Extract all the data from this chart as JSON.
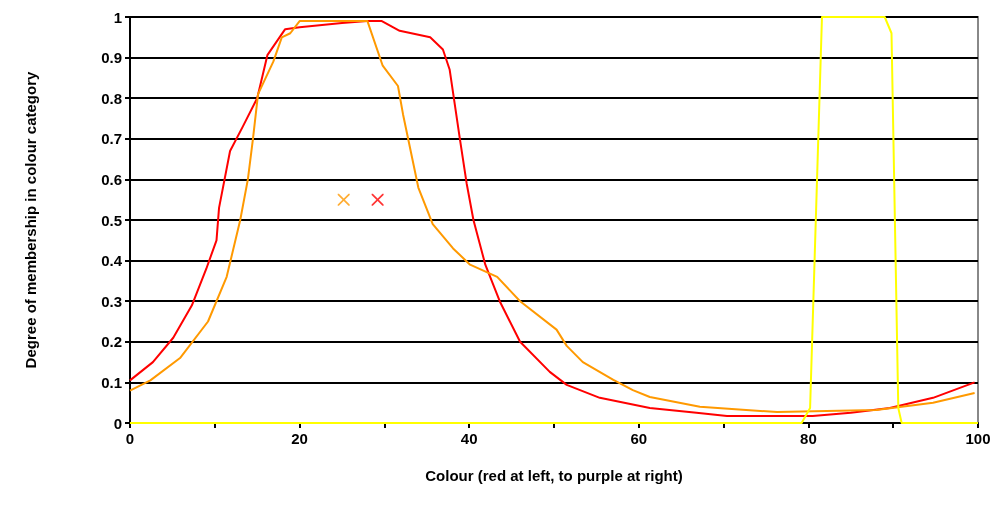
{
  "chart_data": {
    "type": "line",
    "xlabel": "Colour (red at left, to purple at right)",
    "ylabel": "Degree of membership in colour category",
    "xlim": [
      0,
      100
    ],
    "xticks": [
      0,
      {
        "value": 10,
        "label": null
      },
      20,
      {
        "value": 30,
        "label": null
      },
      40,
      {
        "value": 50,
        "label": null
      },
      60,
      {
        "value": 70,
        "label": null
      },
      80,
      {
        "value": 90,
        "label": null
      },
      100
    ],
    "ylim": [
      0,
      1
    ],
    "yticks": [
      0,
      0.1,
      0.2,
      0.3,
      0.4,
      0.5,
      0.6,
      0.7,
      0.8,
      0.9,
      1
    ],
    "grid": "y",
    "marker": "none",
    "line_style": "solid",
    "series": [
      {
        "color": "#ff0000",
        "x": [
          0,
          2.7,
          5.1,
          7.3,
          9,
          10.2,
          10.5,
          11.8,
          13.3,
          15,
          16.2,
          18.3,
          20,
          25,
          28,
          29.7,
          31.8,
          35.4,
          36.9,
          37.7,
          38.9,
          39.7,
          40.5,
          41.9,
          43.6,
          46,
          49.5,
          51.5,
          55.4,
          61.3,
          66.8,
          70.4,
          80.5,
          85,
          89.6,
          94.7,
          99.6
        ],
        "values": [
          0.105,
          0.15,
          0.21,
          0.29,
          0.38,
          0.45,
          0.53,
          0.67,
          0.73,
          0.8,
          0.906,
          0.97,
          0.975,
          0.985,
          0.99,
          0.99,
          0.966,
          0.95,
          0.92,
          0.87,
          0.7,
          0.59,
          0.5,
          0.39,
          0.3,
          0.2,
          0.126,
          0.094,
          0.062,
          0.037,
          0.025,
          0.017,
          0.017,
          0.025,
          0.037,
          0.062,
          0.1
        ]
      },
      {
        "color": "#ff9900",
        "x": [
          0,
          2.4,
          5.9,
          9.2,
          11.4,
          13,
          13.9,
          14.5,
          15.1,
          16.9,
          17.9,
          18.9,
          20,
          28,
          29.8,
          31.6,
          32.2,
          34,
          35.7,
          38.1,
          40.1,
          43.3,
          46,
          50.3,
          51.5,
          53.4,
          57,
          59.3,
          61.3,
          67.2,
          76.3,
          88,
          94.7,
          99.6
        ],
        "values": [
          0.08,
          0.105,
          0.16,
          0.25,
          0.36,
          0.5,
          0.6,
          0.7,
          0.81,
          0.89,
          0.95,
          0.96,
          0.99,
          0.99,
          0.88,
          0.83,
          0.76,
          0.58,
          0.49,
          0.43,
          0.39,
          0.36,
          0.3,
          0.23,
          0.19,
          0.15,
          0.106,
          0.081,
          0.064,
          0.04,
          0.027,
          0.032,
          0.05,
          0.074
        ]
      },
      {
        "color": "#ffff00",
        "x": [
          0,
          79.2,
          80.2,
          81.6,
          89,
          89.8,
          90.6,
          91,
          100
        ],
        "values": [
          0,
          0,
          0.037,
          1,
          1,
          0.96,
          0.037,
          0,
          0
        ]
      },
      {
        "type": "scatter",
        "marker": "cross",
        "color": "#ff9900",
        "x": [
          25.2
        ],
        "values": [
          0.55
        ]
      },
      {
        "type": "scatter",
        "marker": "cross",
        "color": "#ff0000",
        "x": [
          29.2
        ],
        "values": [
          0.55
        ]
      }
    ]
  }
}
